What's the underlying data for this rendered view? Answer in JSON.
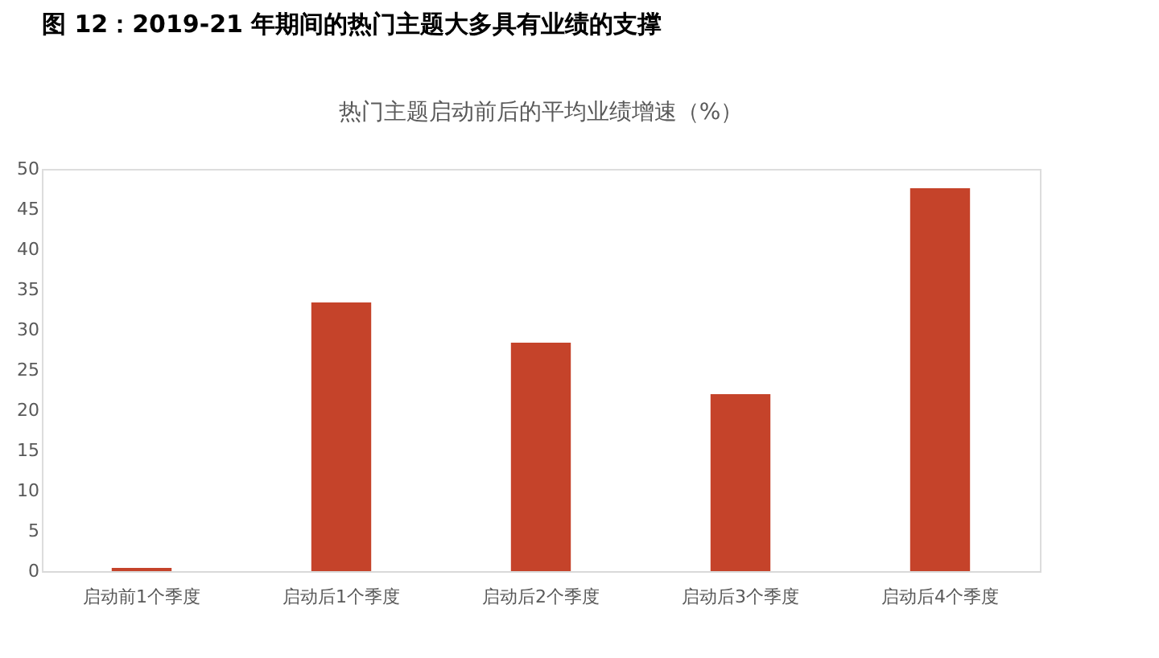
{
  "chart_data": {
    "type": "bar",
    "title": "图 12：2019-21 年期间的热门主题大多具有业绩的支撑",
    "subtitle": "热门主题启动前后的平均业绩增速（%）",
    "categories": [
      "启动前1个季度",
      "启动后1个季度",
      "启动后2个季度",
      "启动后3个季度",
      "启动后4个季度"
    ],
    "values": [
      0.4,
      33.4,
      28.4,
      22.0,
      47.6
    ],
    "color": "#c5432a",
    "ylim": [
      0,
      50
    ],
    "yticks": [
      0,
      5,
      10,
      15,
      20,
      25,
      30,
      35,
      40,
      45,
      50
    ],
    "grid": false
  }
}
